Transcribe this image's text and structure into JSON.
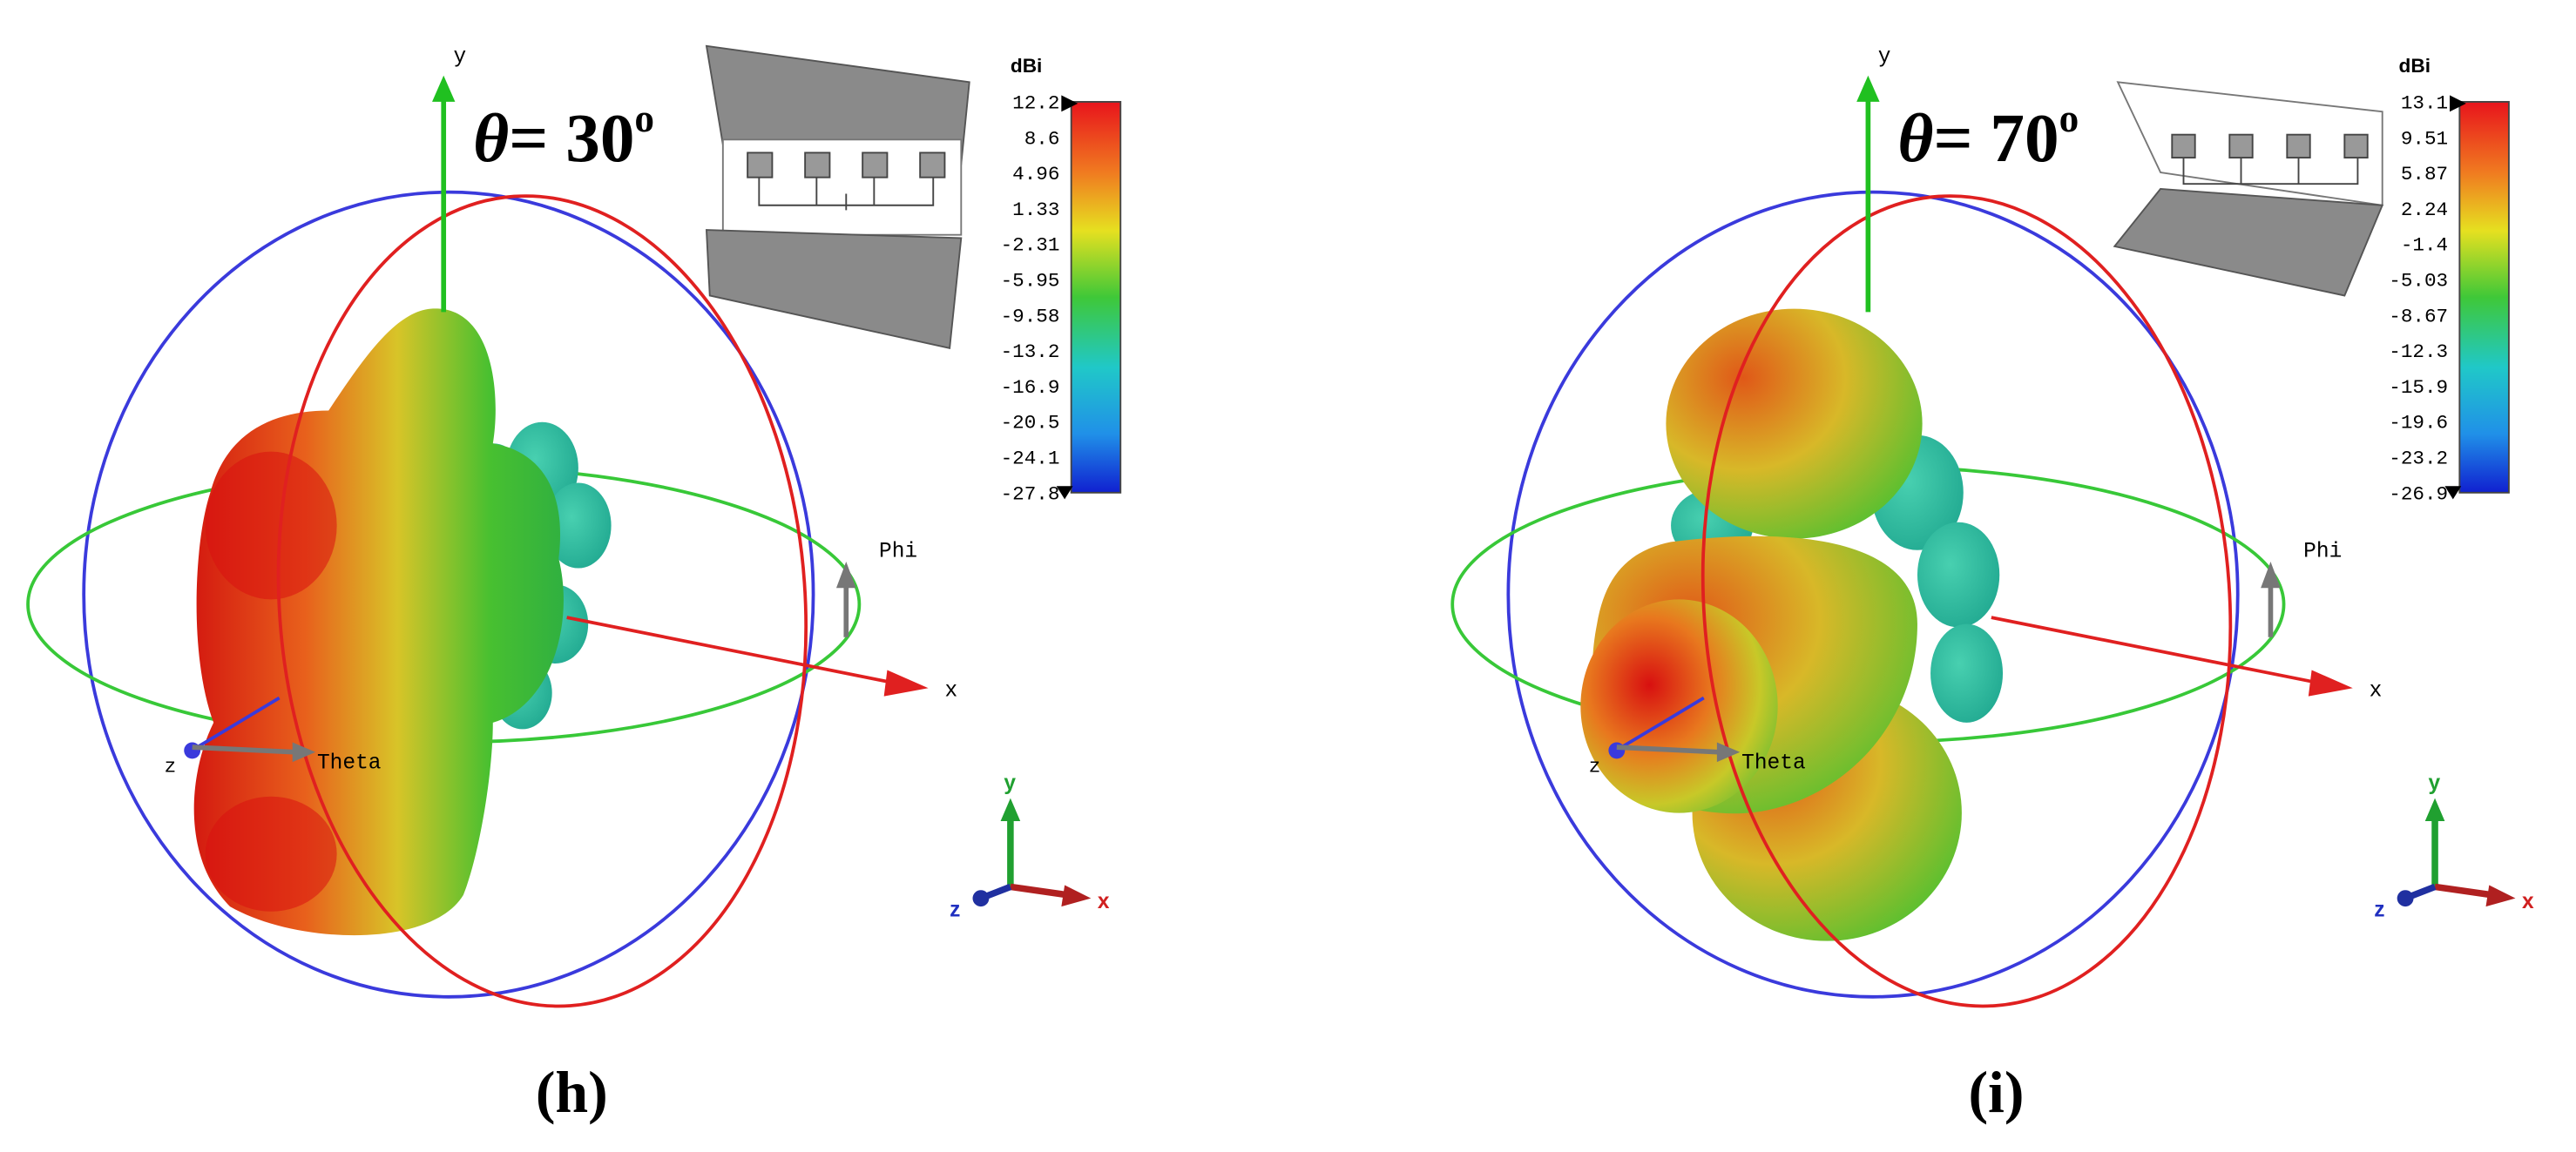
{
  "panels": [
    {
      "label": "(h)",
      "angle": {
        "symbol": "θ",
        "text": "= 30",
        "superscript": "o"
      },
      "colorbar": {
        "unit": "dBi",
        "labels": [
          "12.2",
          "8.6",
          "4.96",
          "1.33",
          "-2.31",
          "-5.95",
          "-9.58",
          "-13.2",
          "-16.9",
          "-20.5",
          "-24.1",
          "-27.8"
        ]
      },
      "axes": {
        "x": "x",
        "y": "y",
        "z": "z",
        "phi": "Phi",
        "theta": "Theta"
      },
      "triad": {
        "x": "x",
        "y": "y",
        "z": "z"
      }
    },
    {
      "label": "(i)",
      "angle": {
        "symbol": "θ",
        "text": "= 70",
        "superscript": "o"
      },
      "colorbar": {
        "unit": "dBi",
        "labels": [
          "13.1",
          "9.51",
          "5.87",
          "2.24",
          "-1.4",
          "-5.03",
          "-8.67",
          "-12.3",
          "-15.9",
          "-19.6",
          "-23.2",
          "-26.9"
        ]
      },
      "axes": {
        "x": "x",
        "y": "y",
        "z": "z",
        "phi": "Phi",
        "theta": "Theta"
      },
      "triad": {
        "x": "x",
        "y": "y",
        "z": "z"
      }
    }
  ]
}
